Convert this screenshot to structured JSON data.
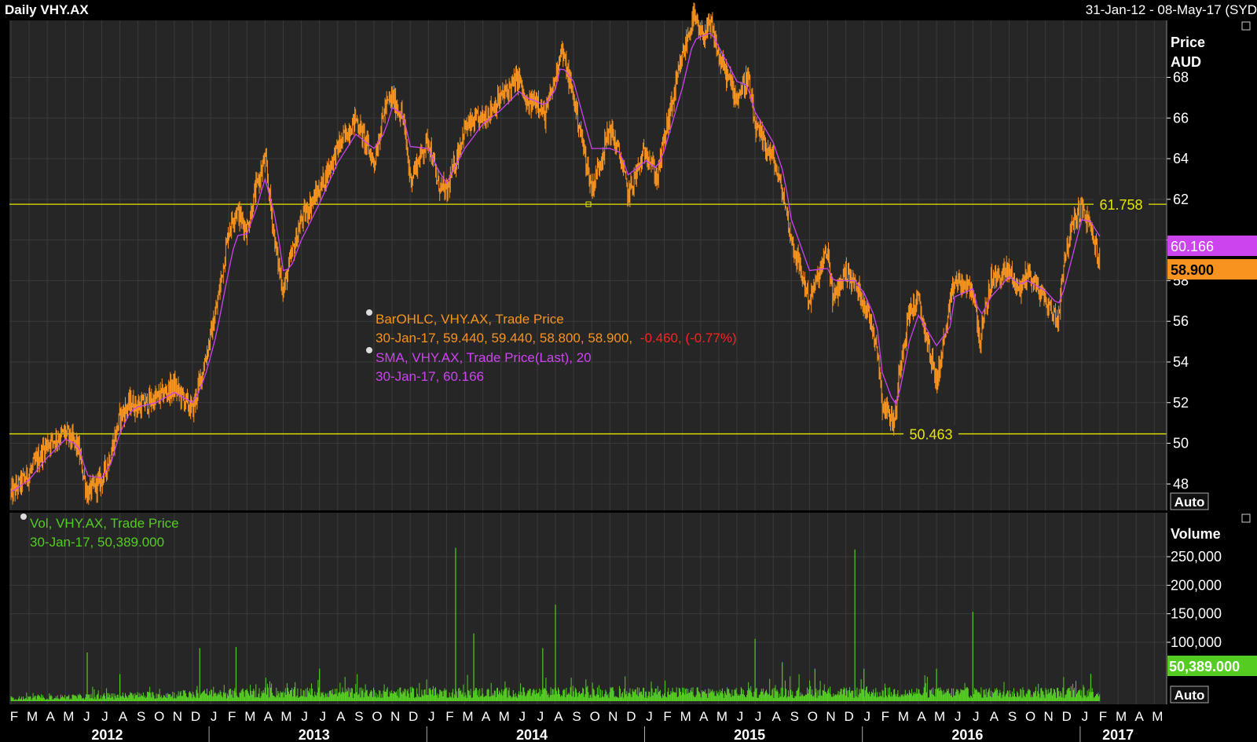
{
  "header": {
    "title": "Daily VHY.AX",
    "date_range": "31-Jan-12 - 08-May-17 (SYD"
  },
  "price_panel": {
    "axis_title_1": "Price",
    "axis_title_2": "AUD",
    "auto_label": "Auto",
    "ticks": [
      48,
      50,
      52,
      54,
      56,
      58,
      60,
      62,
      64,
      66,
      68
    ],
    "tick_labels": [
      "48",
      "50",
      "52",
      "54",
      "56",
      "58",
      "",
      "62",
      "64",
      "66",
      "68"
    ],
    "hline_high": {
      "value": 61.758,
      "label": "61.758"
    },
    "hline_low": {
      "value": 50.463,
      "label": "50.463"
    },
    "badge_sma": "60.166",
    "badge_last": "58.900",
    "legend": {
      "ohlc_title": "BarOHLC, VHY.AX, Trade Price",
      "ohlc_values": "30-Jan-17, 59.440, 59.440, 58.800, 58.900,",
      "ohlc_change": "-0.460, (-0.77%)",
      "sma_title": "SMA, VHY.AX, Trade Price(Last),  20",
      "sma_values": "30-Jan-17, 60.166"
    }
  },
  "volume_panel": {
    "axis_title": "Volume",
    "auto_label": "Auto",
    "ticks": [
      100000,
      150000,
      200000,
      250000
    ],
    "tick_labels": [
      "100,000",
      "150,000",
      "200,000",
      "250,000"
    ],
    "badge_last": "50,389.000",
    "legend": {
      "title": "Vol, VHY.AX, Trade Price",
      "values": "30-Jan-17, 50,389.000"
    }
  },
  "colors": {
    "background": "#000000",
    "panel": "#262626",
    "price_bars": "#f7931e",
    "sma": "#cc44ee",
    "volume": "#55cc22",
    "hline": "#e6e600",
    "change_negative": "#ff2020",
    "axis_text": "#ffffff",
    "grid": "#3a3a3a"
  },
  "x_axis": {
    "months": [
      "F",
      "M",
      "A",
      "M",
      "J",
      "J",
      "A",
      "S",
      "O",
      "N",
      "D",
      "J",
      "F",
      "M",
      "A",
      "M",
      "J",
      "J",
      "A",
      "S",
      "O",
      "N",
      "D",
      "J",
      "F",
      "M",
      "A",
      "M",
      "J",
      "J",
      "A",
      "S",
      "O",
      "N",
      "D",
      "J",
      "F",
      "M",
      "A",
      "M",
      "J",
      "J",
      "A",
      "S",
      "O",
      "N",
      "D",
      "J",
      "F",
      "M",
      "A",
      "M",
      "J",
      "J",
      "A",
      "S",
      "O",
      "N",
      "D",
      "J",
      "F",
      "M",
      "A",
      "M"
    ],
    "years": [
      "2012",
      "2013",
      "2014",
      "2015",
      "2016",
      "2017"
    ]
  },
  "chart_data": {
    "type": "line",
    "x_unit": "month-start (Feb 2012 = 0)",
    "x": [
      0,
      1,
      2,
      3,
      3.7,
      4.2,
      5,
      5.5,
      6,
      6.6,
      7,
      8,
      9,
      10,
      10.4,
      10.8,
      11.3,
      12,
      12.4,
      13,
      13.5,
      14,
      14.6,
      15,
      15.4,
      16,
      17,
      18,
      19,
      20,
      20.6,
      21,
      21.6,
      22,
      23,
      23.5,
      24,
      25,
      26,
      27,
      28,
      28.4,
      29,
      29.4,
      30,
      30.3,
      31,
      32,
      33,
      33.6,
      34,
      35,
      35.6,
      36,
      37,
      37.6,
      38,
      38.6,
      39,
      40,
      40.6,
      41,
      42,
      42.6,
      43,
      44,
      45,
      45.3,
      46,
      46.5,
      47,
      47.7,
      48,
      48.7,
      49,
      49.5,
      50,
      51,
      51.8,
      52,
      53,
      53.4,
      54,
      55,
      55.6,
      56,
      57,
      57.7,
      58,
      58.6,
      59,
      59.5,
      60
    ],
    "series": [
      {
        "values": [
          47.5,
          48.5,
          50.0,
          50.5,
          49.8,
          47.5,
          48.2,
          49.5,
          51.3,
          52.0,
          51.8,
          52.2,
          52.8,
          51.6,
          53.0,
          54.5,
          56.5,
          60.5,
          61.5,
          60.5,
          62.5,
          64.0,
          59.5,
          57.5,
          59.0,
          61.0,
          62.5,
          64.5,
          66.0,
          63.8,
          66.5,
          67.0,
          66.0,
          63.0,
          65.0,
          62.8,
          62.3,
          65.5,
          66.0,
          67.0,
          68.0,
          66.5,
          67.0,
          66.0,
          68.0,
          69.5,
          67.0,
          62.5,
          65.5,
          64.0,
          62.2,
          64.5,
          63.0,
          65.0,
          69.0,
          71.0,
          70.0,
          70.5,
          69.0,
          67.0,
          68.0,
          65.5,
          64.0,
          62.0,
          60.0,
          57.0,
          59.5,
          57.0,
          58.5,
          57.8,
          57.0,
          55.0,
          52.0,
          51.0,
          54.0,
          56.5,
          57.0,
          53.0,
          57.0,
          58.0,
          57.5,
          55.0,
          58.0,
          58.5,
          57.5,
          58.5,
          57.0,
          56.0,
          59.0,
          61.0,
          61.6,
          60.5,
          58.9
        ]
      },
      {
        "values": [
          47.6,
          48.2,
          49.3,
          50.2,
          49.9,
          48.4,
          48.3,
          49.0,
          50.5,
          51.6,
          51.8,
          52.0,
          52.5,
          52.0,
          52.6,
          53.6,
          55.3,
          58.5,
          60.2,
          60.3,
          61.5,
          63.0,
          61.0,
          58.5,
          58.6,
          60.0,
          61.8,
          63.8,
          65.2,
          64.5,
          65.3,
          66.5,
          66.2,
          64.6,
          64.5,
          63.5,
          62.8,
          64.5,
          65.7,
          66.4,
          67.3,
          67.0,
          66.8,
          66.6,
          67.4,
          68.6,
          67.8,
          64.5,
          64.5,
          64.3,
          63.2,
          63.9,
          63.5,
          64.4,
          67.5,
          69.8,
          70.0,
          70.2,
          69.5,
          67.8,
          67.6,
          66.3,
          64.8,
          63.2,
          61.0,
          58.5,
          58.6,
          58.0,
          58.0,
          58.0,
          57.4,
          56.0,
          53.5,
          51.8,
          52.7,
          55.0,
          56.3,
          54.8,
          55.8,
          57.2,
          57.6,
          56.2,
          57.2,
          58.2,
          57.8,
          58.0,
          57.5,
          56.8,
          57.5,
          59.6,
          61.0,
          60.9,
          60.17
        ]
      }
    ],
    "ylim": [
      46.7,
      70.8
    ],
    "volume": {
      "type": "bar",
      "baseline": 40000,
      "spikes": [
        {
          "x": 4.2,
          "value": 90000
        },
        {
          "x": 6.0,
          "value": 50000
        },
        {
          "x": 10.4,
          "value": 98000
        },
        {
          "x": 12.4,
          "value": 100000
        },
        {
          "x": 17.0,
          "value": 60000
        },
        {
          "x": 24.5,
          "value": 283000
        },
        {
          "x": 25.5,
          "value": 125000
        },
        {
          "x": 29.3,
          "value": 98000
        },
        {
          "x": 30.0,
          "value": 178000
        },
        {
          "x": 41.0,
          "value": 115000
        },
        {
          "x": 42.5,
          "value": 72000
        },
        {
          "x": 44.3,
          "value": 60000
        },
        {
          "x": 46.5,
          "value": 280000
        },
        {
          "x": 47.0,
          "value": 60000
        },
        {
          "x": 51.0,
          "value": 60000
        },
        {
          "x": 53.0,
          "value": 165000
        },
        {
          "x": 59.5,
          "value": 50389
        }
      ],
      "ylim": [
        50000,
        300000
      ]
    }
  }
}
